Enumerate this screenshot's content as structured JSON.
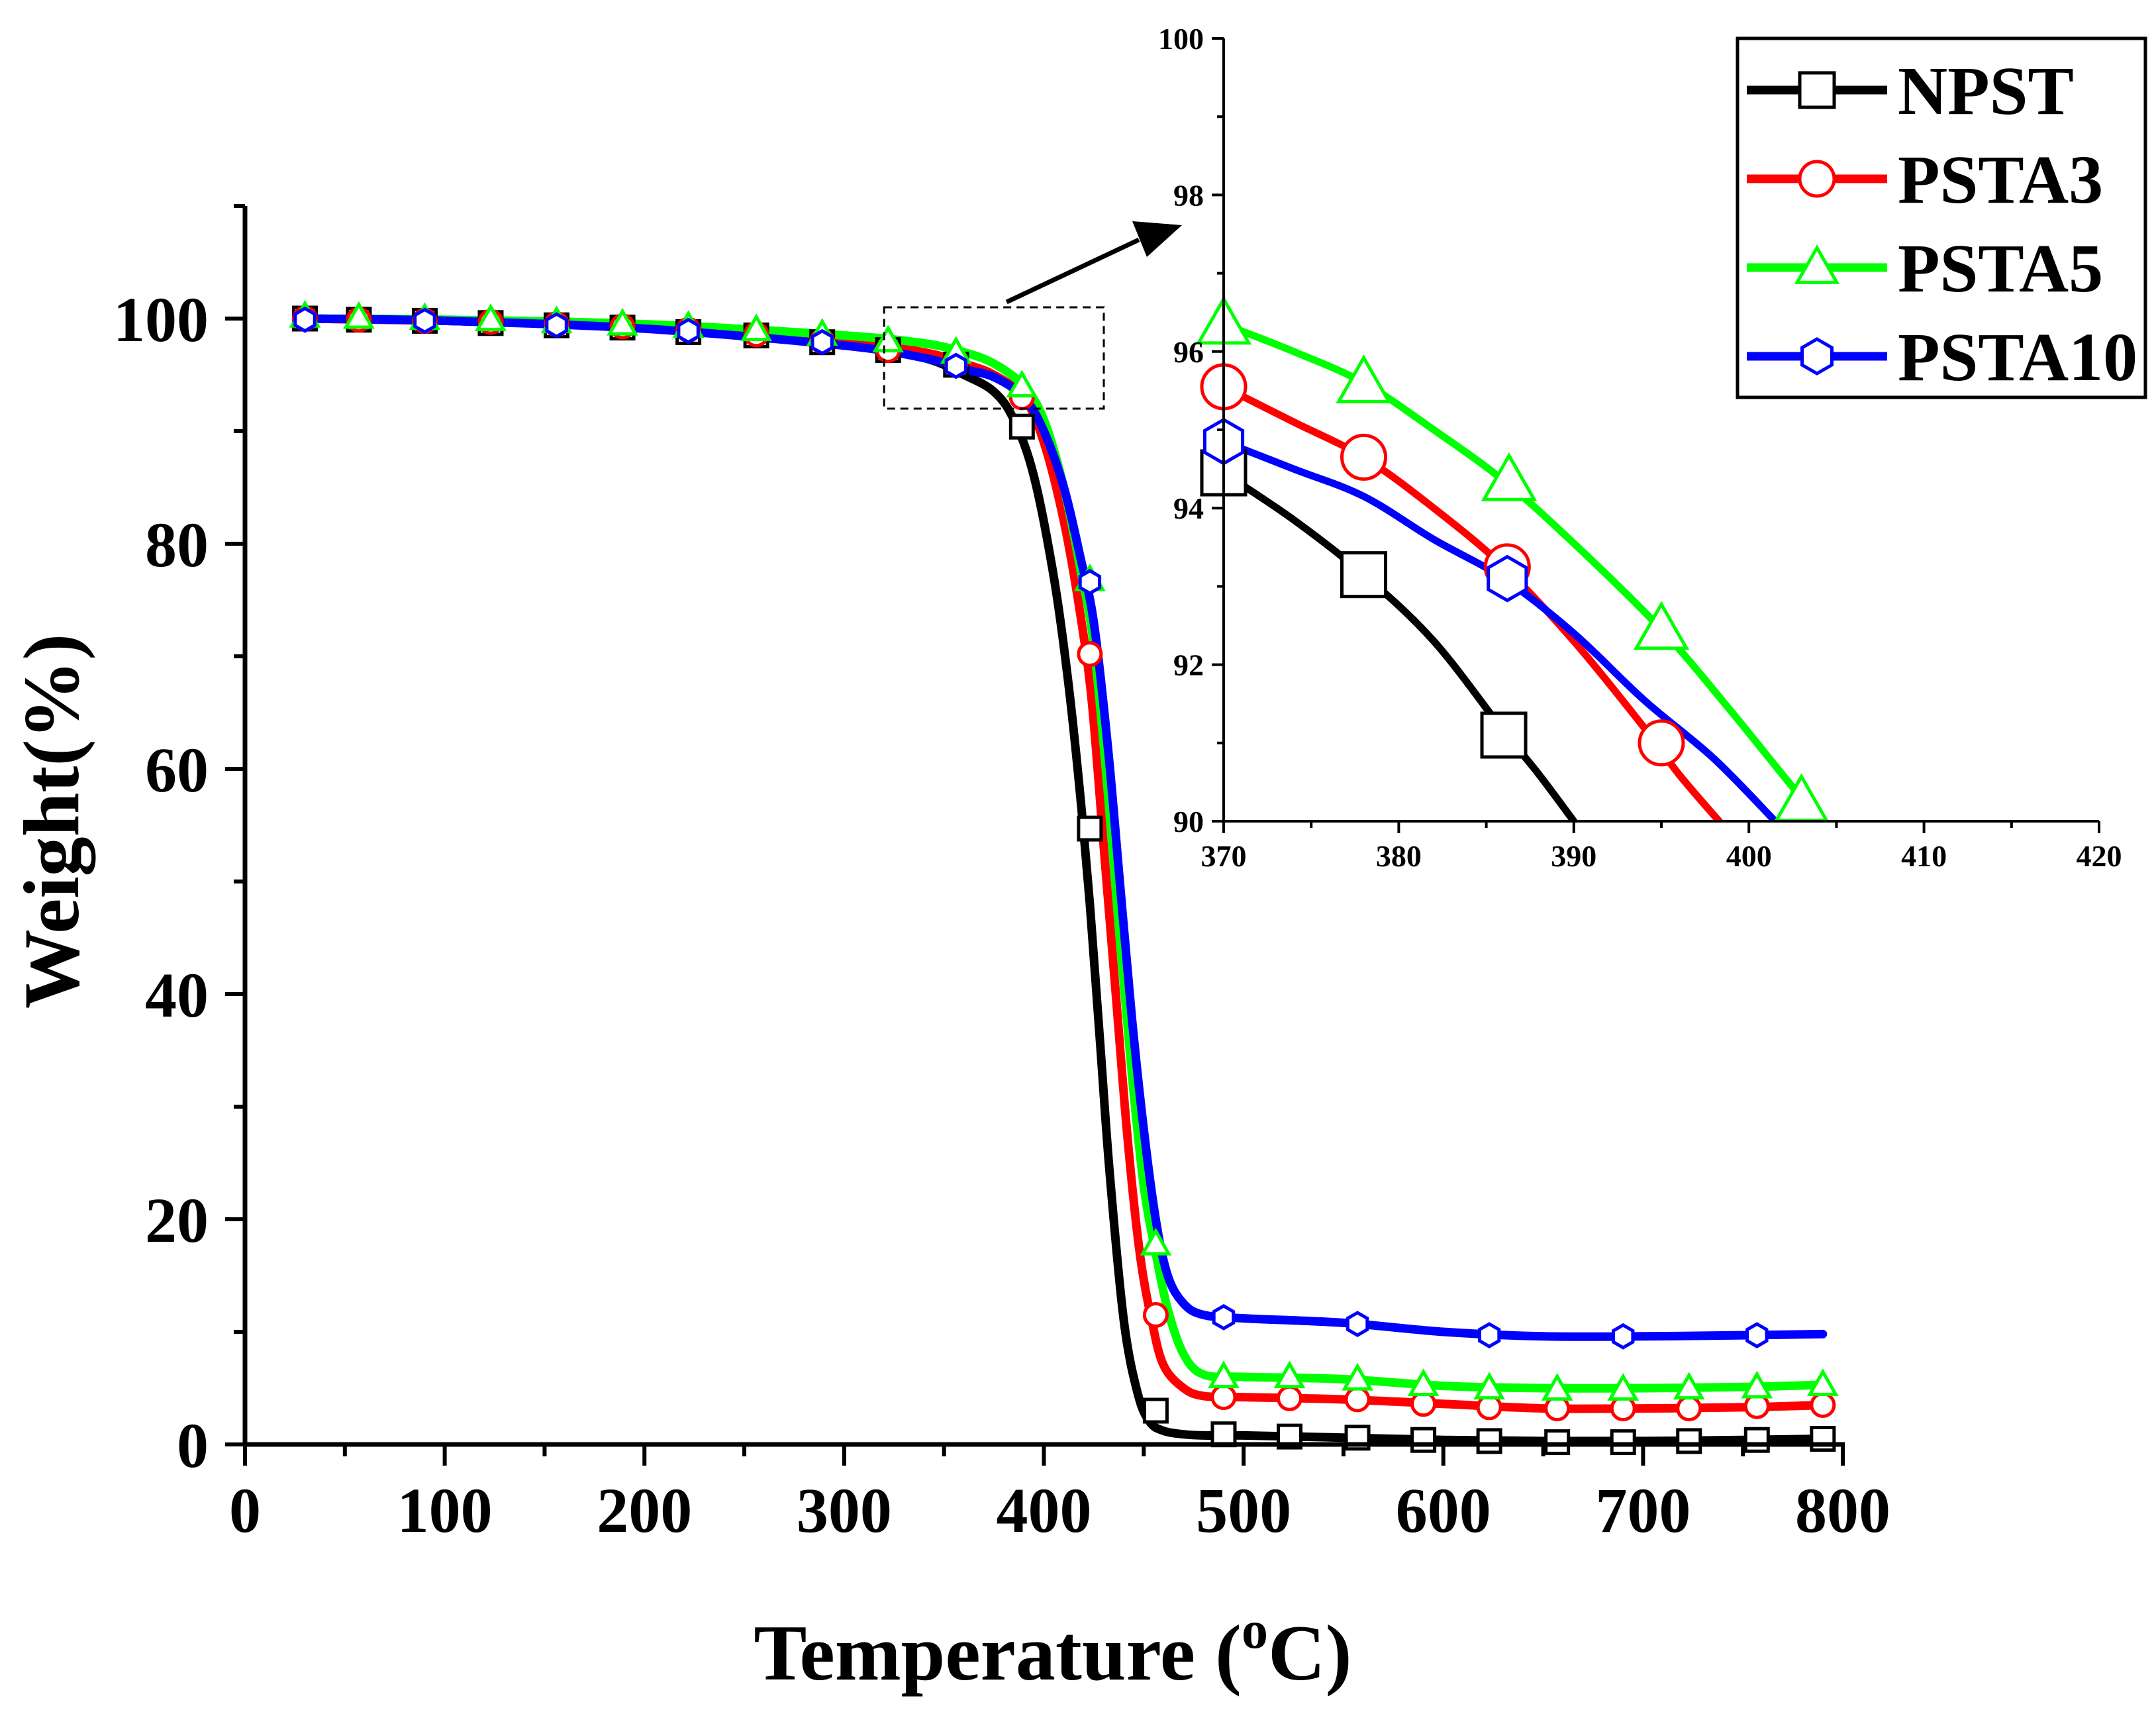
{
  "chart_data": [
    {
      "type": "line",
      "role": "main",
      "xlabel": "Temperature (",
      "xlabel_sup": "o",
      "xlabel_end": "C)",
      "ylabel": "Weight(%)",
      "xlim": [
        0,
        800
      ],
      "ylim": [
        0,
        110
      ],
      "xticks": [
        "0",
        "100",
        "200",
        "300",
        "400",
        "500",
        "600",
        "700",
        "800"
      ],
      "yticks": [
        "0",
        "20",
        "40",
        "60",
        "80",
        "100"
      ],
      "series": [
        {
          "name": "NPST",
          "color": "#000000",
          "marker": "square",
          "x": [
            30,
            100,
            200,
            300,
            340,
            360,
            375,
            385,
            395,
            405,
            412,
            418,
            423,
            428,
            433,
            440,
            447,
            453,
            460,
            470,
            480,
            500,
            550,
            600,
            650,
            700,
            750,
            790
          ],
          "y": [
            100,
            99.8,
            99.2,
            97.8,
            96.5,
            95,
            93.5,
            91,
            86,
            77,
            68,
            58,
            48,
            36,
            24,
            11,
            4.5,
            2,
            1.2,
            0.9,
            0.8,
            0.8,
            0.6,
            0.4,
            0.3,
            0.3,
            0.4,
            0.5
          ],
          "markers_x": [
            30,
            57,
            90,
            123,
            156,
            189,
            222,
            256,
            289,
            322,
            356,
            389,
            423,
            456,
            490,
            523,
            557,
            590,
            623,
            657,
            690,
            723,
            757,
            790
          ],
          "markers_y": [
            100,
            99.9,
            99.8,
            99.6,
            99.4,
            99.2,
            98.8,
            98.5,
            97.9,
            97.2,
            95.9,
            90.4,
            54.7,
            3.0,
            0.9,
            0.7,
            0.6,
            0.4,
            0.3,
            0.2,
            0.2,
            0.3,
            0.4,
            0.5
          ]
        },
        {
          "name": "PSTA3",
          "color": "#ff0000",
          "marker": "circle",
          "x": [
            30,
            100,
            200,
            300,
            340,
            360,
            375,
            390,
            400,
            410,
            418,
            424,
            430,
            436,
            442,
            448,
            454,
            460,
            470,
            480,
            500,
            550,
            600,
            650,
            700,
            750,
            790
          ],
          "y": [
            100,
            99.8,
            99.3,
            98,
            97,
            96,
            95,
            93,
            89,
            82,
            74,
            66,
            53,
            40,
            27,
            17,
            11,
            7,
            5,
            4.3,
            4.2,
            4,
            3.6,
            3.2,
            3.2,
            3.3,
            3.5
          ],
          "markers_x": [
            30,
            57,
            90,
            123,
            156,
            189,
            222,
            256,
            289,
            322,
            356,
            389,
            423,
            456,
            490,
            523,
            557,
            590,
            623,
            657,
            690,
            723,
            757,
            790
          ],
          "markers_y": [
            100,
            99.9,
            99.8,
            99.7,
            99.5,
            99.3,
            99.0,
            98.6,
            98.0,
            97.2,
            96.2,
            93.0,
            70.2,
            11.5,
            4.2,
            4.1,
            4.0,
            3.6,
            3.3,
            3.2,
            3.2,
            3.2,
            3.4,
            3.5
          ]
        },
        {
          "name": "PSTA5",
          "color": "#00ff00",
          "marker": "triangle",
          "x": [
            30,
            100,
            200,
            300,
            340,
            360,
            375,
            390,
            400,
            410,
            418,
            425,
            432,
            438,
            444,
            450,
            456,
            462,
            470,
            480,
            500,
            550,
            600,
            650,
            700,
            750,
            790
          ],
          "y": [
            100,
            99.9,
            99.5,
            98.5,
            97.8,
            97,
            96,
            94,
            91,
            85,
            78,
            71,
            58,
            45,
            33,
            23,
            17,
            12,
            8,
            6.2,
            6,
            5.8,
            5.2,
            5,
            5,
            5.1,
            5.3
          ],
          "markers_x": [
            30,
            57,
            90,
            123,
            156,
            189,
            222,
            256,
            289,
            322,
            356,
            389,
            423,
            456,
            490,
            523,
            557,
            590,
            623,
            657,
            690,
            723,
            757,
            790
          ],
          "markers_y": [
            100.2,
            100.1,
            100,
            99.9,
            99.7,
            99.5,
            99.3,
            99.0,
            98.6,
            98.0,
            97.0,
            94.0,
            76.8,
            17.8,
            6.0,
            6.0,
            5.8,
            5.3,
            5.0,
            4.9,
            4.9,
            5.0,
            5.1,
            5.3
          ]
        },
        {
          "name": "PSTA10",
          "color": "#0000ff",
          "marker": "hexagon",
          "x": [
            30,
            100,
            200,
            300,
            340,
            360,
            375,
            390,
            400,
            410,
            418,
            425,
            432,
            438,
            444,
            450,
            456,
            462,
            470,
            480,
            500,
            550,
            600,
            650,
            700,
            750,
            790
          ],
          "y": [
            100,
            99.8,
            99.1,
            97.6,
            96.5,
            95.5,
            94.8,
            93,
            90,
            85,
            79,
            73,
            62,
            50,
            38,
            28,
            20,
            15,
            12.5,
            11.5,
            11.2,
            10.8,
            10,
            9.6,
            9.6,
            9.7,
            9.8
          ],
          "markers_x": [
            30,
            90,
            156,
            222,
            289,
            356,
            423,
            490,
            557,
            623,
            690,
            757
          ],
          "markers_y": [
            99.9,
            99.8,
            99.4,
            98.9,
            97.9,
            95.8,
            76.6,
            11.3,
            10.7,
            9.7,
            9.6,
            9.7
          ]
        }
      ]
    },
    {
      "type": "line",
      "role": "inset",
      "xlim": [
        370,
        420
      ],
      "ylim": [
        90,
        100
      ],
      "xticks": [
        "370",
        "380",
        "390",
        "400",
        "410",
        "420"
      ],
      "yticks": [
        "90",
        "92",
        "94",
        "96",
        "98",
        "100"
      ],
      "series": [
        {
          "name": "NPST",
          "color": "#000000",
          "marker": "square",
          "x": [
            370,
            374,
            378,
            382,
            386,
            388,
            390
          ],
          "y": [
            94.45,
            93.85,
            93.15,
            92.3,
            91.15,
            90.6,
            90.0
          ],
          "markers_x": [
            370,
            378,
            386
          ],
          "markers_y": [
            94.45,
            93.15,
            91.1
          ]
        },
        {
          "name": "PSTA3",
          "color": "#ff0000",
          "marker": "circle",
          "x": [
            370,
            374,
            378,
            382,
            386,
            390,
            394,
            396,
            398.3
          ],
          "y": [
            95.55,
            95.1,
            94.65,
            94.0,
            93.25,
            92.3,
            91.2,
            90.6,
            90.0
          ],
          "markers_x": [
            370,
            378,
            386.2,
            395
          ],
          "markers_y": [
            95.55,
            94.65,
            93.25,
            91.0
          ]
        },
        {
          "name": "PSTA5",
          "color": "#00ff00",
          "marker": "triangle",
          "x": [
            370,
            374,
            378,
            382,
            386,
            390,
            395,
            399,
            403,
            404.5
          ],
          "y": [
            96.35,
            96.0,
            95.6,
            95.0,
            94.35,
            93.55,
            92.45,
            91.4,
            90.3,
            89.95
          ],
          "markers_x": [
            370,
            378,
            386.3,
            395,
            403
          ],
          "markers_y": [
            96.35,
            95.6,
            94.35,
            92.45,
            90.25
          ]
        },
        {
          "name": "PSTA10",
          "color": "#0000ff",
          "marker": "hexagon",
          "x": [
            370,
            374,
            378,
            382,
            386,
            390,
            394,
            398,
            401.5
          ],
          "y": [
            94.85,
            94.5,
            94.15,
            93.6,
            93.1,
            92.4,
            91.55,
            90.8,
            90.0
          ],
          "markers_x": [
            370,
            386.2
          ],
          "markers_y": [
            94.85,
            93.1
          ]
        }
      ]
    }
  ],
  "legend": {
    "placement": "top-right",
    "items": [
      {
        "label": "NPST",
        "color": "#000000",
        "marker": "square"
      },
      {
        "label": "PSTA3",
        "color": "#ff0000",
        "marker": "circle"
      },
      {
        "label": "PSTA5",
        "color": "#00ff00",
        "marker": "triangle"
      },
      {
        "label": "PSTA10",
        "color": "#0000ff",
        "marker": "hexagon"
      }
    ]
  },
  "zoom_region": {
    "x_range": [
      320,
      430
    ],
    "y_range": [
      92,
      101
    ]
  }
}
